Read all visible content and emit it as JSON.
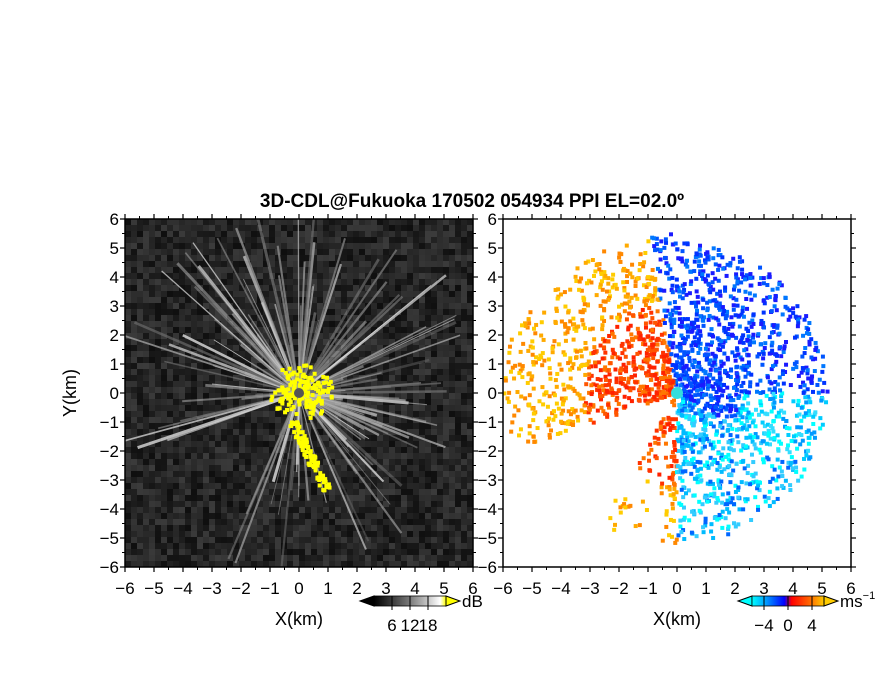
{
  "chart_data": [
    {
      "type": "heatmap",
      "panel": "left",
      "title": "3D-CDL@Fukuoka 170502 054934 PPI EL=02.0º",
      "xlabel": "X(km)",
      "ylabel": "Y(km)",
      "xlim": [
        -6,
        6
      ],
      "ylim": [
        -6,
        6
      ],
      "xticks": [
        "−6",
        "−5",
        "−4",
        "−3",
        "−2",
        "−1",
        "0",
        "1",
        "2",
        "3",
        "4",
        "5",
        "6"
      ],
      "yticks": [
        "6",
        "5",
        "4",
        "3",
        "2",
        "1",
        "0",
        "−1",
        "−2",
        "−3",
        "−4",
        "−5",
        "−6"
      ],
      "colorbar": {
        "unit": "dB",
        "ticks": [
          "6",
          "12",
          "18"
        ],
        "range": [
          0,
          24
        ],
        "colors": [
          "#000000",
          "#3a3a3a",
          "#7a7a7a",
          "#bdbdbd",
          "#ffffff",
          "#ffff00"
        ]
      },
      "radar_center": [
        0,
        0
      ],
      "description_free": true
    },
    {
      "type": "heatmap",
      "panel": "right",
      "xlabel": "X(km)",
      "ylabel": "",
      "xlim": [
        -6,
        6
      ],
      "ylim": [
        -6,
        6
      ],
      "xticks": [
        "−6",
        "−5",
        "−4",
        "−3",
        "−2",
        "−1",
        "0",
        "1",
        "2",
        "3",
        "4",
        "5",
        "6"
      ],
      "yticks": [
        "6",
        "5",
        "4",
        "3",
        "2",
        "1",
        "0",
        "−1",
        "−2",
        "−3",
        "−4",
        "−5",
        "−6"
      ],
      "colorbar": {
        "unit": "ms",
        "unit_exp": "−1",
        "ticks": [
          "−4",
          "0",
          "4"
        ],
        "range": [
          -6,
          6
        ],
        "colors": [
          "#00ffff",
          "#0099ff",
          "#0000ff",
          "#ff0000",
          "#ff6600",
          "#ffcc00"
        ]
      },
      "radar_center": [
        0,
        0
      ]
    }
  ]
}
